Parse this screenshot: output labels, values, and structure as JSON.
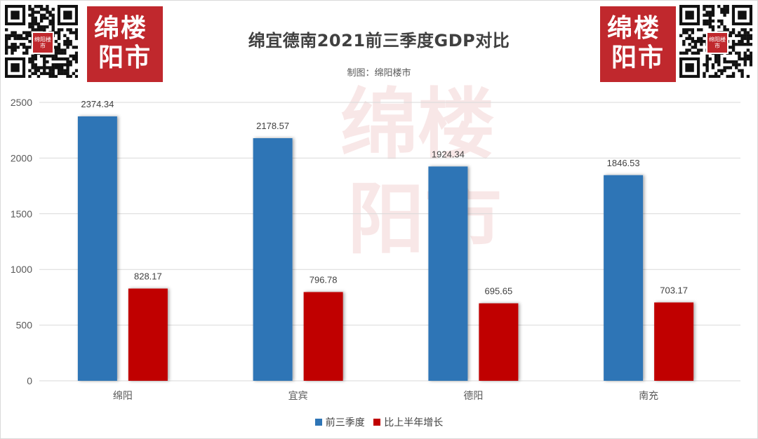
{
  "header": {
    "title": "绵宜德南2021前三季度GDP对比",
    "subtitle": "制图：绵阳楼市",
    "logo_line1": "绵楼",
    "logo_line2": "阳市",
    "qr_badge": "绵阳楼市",
    "watermark_line1": "绵楼",
    "watermark_line2": "阳市"
  },
  "colors": {
    "series1": "#2e75b6",
    "series2": "#c00000",
    "brand": "#c0282d",
    "grid": "#d9d9d9",
    "axis_text": "#595959"
  },
  "legend": {
    "items": [
      {
        "label": "前三季度",
        "color": "#2e75b6"
      },
      {
        "label": "比上半年增长",
        "color": "#c00000"
      }
    ]
  },
  "chart_data": {
    "type": "bar",
    "title": "绵宜德南2021前三季度GDP对比",
    "subtitle": "制图：绵阳楼市",
    "categories": [
      "绵阳",
      "宜宾",
      "德阳",
      "南充"
    ],
    "series": [
      {
        "name": "前三季度",
        "values": [
          2374.34,
          2178.57,
          1924.34,
          1846.53
        ]
      },
      {
        "name": "比上半年增长",
        "values": [
          828.17,
          796.78,
          695.65,
          703.17
        ]
      }
    ],
    "data_labels": [
      [
        "2374.34",
        "2178.57",
        "1924.34",
        "1846.53"
      ],
      [
        "828.17",
        "796.78",
        "695.65",
        "703.17"
      ]
    ],
    "yticks": [
      "0",
      "500",
      "1000",
      "1500",
      "2000",
      "2500"
    ],
    "ylim": [
      0,
      2500
    ],
    "grid": true,
    "legend_position": "bottom"
  }
}
